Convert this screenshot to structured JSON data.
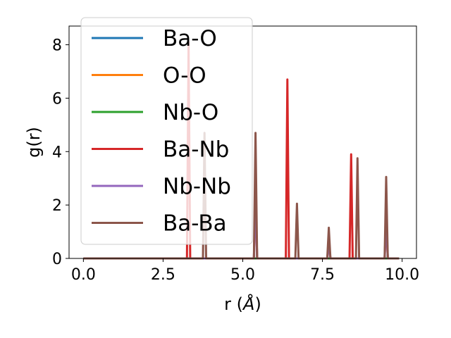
{
  "chart_data": {
    "type": "line",
    "xlabel_main": "r (",
    "xlabel_unit": "Å",
    "xlabel_close": ")",
    "ylabel": "g(r)",
    "xlim": [
      -0.45,
      10.45
    ],
    "ylim": [
      0,
      8.7
    ],
    "xticks": [
      0.0,
      2.5,
      5.0,
      7.5,
      10.0
    ],
    "xtick_labels": [
      "0.0",
      "2.5",
      "5.0",
      "7.5",
      "10.0"
    ],
    "yticks": [
      0,
      2,
      4,
      6,
      8
    ],
    "ytick_labels": [
      "0",
      "2",
      "4",
      "6",
      "8"
    ],
    "grid": false,
    "legend_position": "top-left",
    "x_range": [
      0.0,
      9.9
    ],
    "series": [
      {
        "name": "Ba-O",
        "color": "#1f77b4",
        "peaks": []
      },
      {
        "name": "O-O",
        "color": "#ff7f0e",
        "peaks": []
      },
      {
        "name": "Nb-O",
        "color": "#2ca02c",
        "peaks": []
      },
      {
        "name": "Ba-Nb",
        "color": "#d62728",
        "peaks": [
          [
            3.3,
            8.1
          ],
          [
            5.4,
            2.4
          ],
          [
            6.4,
            6.7
          ],
          [
            7.7,
            0.6
          ],
          [
            8.4,
            3.9
          ],
          [
            9.5,
            1.5
          ]
        ]
      },
      {
        "name": "Nb-Nb",
        "color": "#9467bd",
        "peaks": [
          [
            5.4,
            2.4
          ],
          [
            7.7,
            0.6
          ],
          [
            9.5,
            1.5
          ]
        ]
      },
      {
        "name": "Ba-Ba",
        "color": "#8c564b",
        "peaks": [
          [
            3.8,
            4.7
          ],
          [
            5.4,
            4.7
          ],
          [
            6.7,
            2.05
          ],
          [
            7.7,
            1.15
          ],
          [
            8.6,
            3.75
          ],
          [
            9.5,
            3.05
          ]
        ]
      }
    ]
  }
}
